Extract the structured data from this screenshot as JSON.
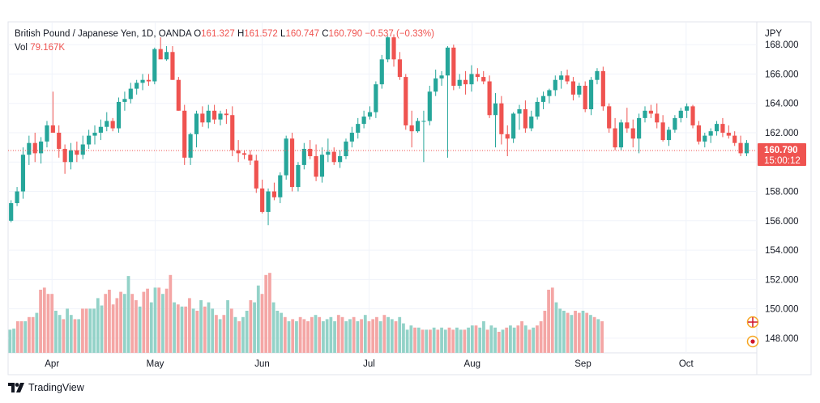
{
  "legend": {
    "symbol": "British Pound / Japanese Yen, 1D, OANDA",
    "open_label": "O",
    "open": "161.327",
    "high_label": "H",
    "high": "161.572",
    "low_label": "L",
    "low": "160.747",
    "close_label": "C",
    "close": "160.790",
    "change": "−0.537 (−0.33%)",
    "vol_label": "Vol",
    "vol": "79.167K"
  },
  "axis": {
    "currency": "JPY",
    "price_ticks": [
      "168.000",
      "166.000",
      "164.000",
      "162.000",
      "160.000",
      "158.000",
      "156.000",
      "154.000",
      "152.000",
      "150.000",
      "148.000"
    ],
    "months": [
      "Apr",
      "May",
      "Jun",
      "Jul",
      "Aug",
      "Sep",
      "Oct"
    ]
  },
  "last_price": {
    "price": "160.790",
    "countdown": "15:00:12"
  },
  "footer": {
    "brand": "TradingView",
    "logo_icon": "tradingview-logo-icon"
  },
  "colors": {
    "up": "#26a69a",
    "down": "#ef5350",
    "vol_up": "#93d2c8",
    "vol_down": "#f4a6a5"
  },
  "chart_data": {
    "type": "candlestick",
    "title": "British Pound / Japanese Yen, 1D, OANDA",
    "ylim": [
      147,
      169.5
    ],
    "y_axis_side": "right",
    "grid": true,
    "x_months": [
      {
        "label": "Apr",
        "index": 11
      },
      {
        "label": "May",
        "index": 38
      },
      {
        "label": "Jun",
        "index": 66
      },
      {
        "label": "Jul",
        "index": 94
      },
      {
        "label": "Aug",
        "index": 121
      },
      {
        "label": "Sep",
        "index": 150
      },
      {
        "label": "Oct",
        "index": 177
      }
    ],
    "candles": [
      [
        156.0,
        157.4,
        155.9,
        157.2
      ],
      [
        157.2,
        158.3,
        157.0,
        158.0
      ],
      [
        158.0,
        161.0,
        157.5,
        160.5
      ],
      [
        160.5,
        161.8,
        159.8,
        161.3
      ],
      [
        161.3,
        162.0,
        160.0,
        160.6
      ],
      [
        160.6,
        161.7,
        159.9,
        161.4
      ],
      [
        161.4,
        162.8,
        161.0,
        162.5
      ],
      [
        162.5,
        164.8,
        162.0,
        162.0
      ],
      [
        162.0,
        162.5,
        160.3,
        160.9
      ],
      [
        160.9,
        161.2,
        159.2,
        160.0
      ],
      [
        160.0,
        161.3,
        159.5,
        160.8
      ],
      [
        160.8,
        161.4,
        160.0,
        160.5
      ],
      [
        160.5,
        161.8,
        160.2,
        161.2
      ],
      [
        161.2,
        162.2,
        160.9,
        161.8
      ],
      [
        161.8,
        162.5,
        161.2,
        162.0
      ],
      [
        162.0,
        162.9,
        161.5,
        162.4
      ],
      [
        162.4,
        163.4,
        162.1,
        162.8
      ],
      [
        162.8,
        163.0,
        162.1,
        162.3
      ],
      [
        162.3,
        164.4,
        162.0,
        164.1
      ],
      [
        164.1,
        164.8,
        163.5,
        164.3
      ],
      [
        164.3,
        165.4,
        164.0,
        165.0
      ],
      [
        165.0,
        165.6,
        164.6,
        165.4
      ],
      [
        165.4,
        166.0,
        164.9,
        165.6
      ],
      [
        165.6,
        166.0,
        165.2,
        165.5
      ],
      [
        165.5,
        167.8,
        165.3,
        167.7
      ],
      [
        167.7,
        168.5,
        167.2,
        167.0
      ],
      [
        167.0,
        167.9,
        166.9,
        167.5
      ],
      [
        167.5,
        167.9,
        165.6,
        165.6
      ],
      [
        165.6,
        165.8,
        163.5,
        163.5
      ],
      [
        163.5,
        163.9,
        159.8,
        160.3
      ],
      [
        160.3,
        162.0,
        159.8,
        161.9
      ],
      [
        161.9,
        163.5,
        161.0,
        163.3
      ],
      [
        163.3,
        163.8,
        162.4,
        162.7
      ],
      [
        162.7,
        163.9,
        162.3,
        163.5
      ],
      [
        163.5,
        163.9,
        162.6,
        162.9
      ],
      [
        162.9,
        163.5,
        162.5,
        163.3
      ],
      [
        163.3,
        163.6,
        162.6,
        163.2
      ],
      [
        163.2,
        163.8,
        160.4,
        160.8
      ],
      [
        160.8,
        161.5,
        160.0,
        160.6
      ],
      [
        160.6,
        160.8,
        160.2,
        160.5
      ],
      [
        160.5,
        160.8,
        159.8,
        160.1
      ],
      [
        160.1,
        160.5,
        157.9,
        158.2
      ],
      [
        158.2,
        158.8,
        156.5,
        156.6
      ],
      [
        156.6,
        158.2,
        155.7,
        158.0
      ],
      [
        158.0,
        158.6,
        157.4,
        157.6
      ],
      [
        157.6,
        159.3,
        157.2,
        159.1
      ],
      [
        159.1,
        161.8,
        158.8,
        161.6
      ],
      [
        161.6,
        162.0,
        158.0,
        158.3
      ],
      [
        158.3,
        160.0,
        158.0,
        159.8
      ],
      [
        159.8,
        161.3,
        159.5,
        160.9
      ],
      [
        160.9,
        161.5,
        160.2,
        160.4
      ],
      [
        160.4,
        161.2,
        158.7,
        159.0
      ],
      [
        159.0,
        161.0,
        158.6,
        160.5
      ],
      [
        160.5,
        161.6,
        160.0,
        160.7
      ],
      [
        160.7,
        161.0,
        159.8,
        160.0
      ],
      [
        160.0,
        160.8,
        159.6,
        160.4
      ],
      [
        160.4,
        161.6,
        160.2,
        161.4
      ],
      [
        161.4,
        162.4,
        161.0,
        162.0
      ],
      [
        162.0,
        163.0,
        161.6,
        162.6
      ],
      [
        162.6,
        163.5,
        162.3,
        163.1
      ],
      [
        163.1,
        163.8,
        162.9,
        163.4
      ],
      [
        163.4,
        165.5,
        163.0,
        165.3
      ],
      [
        165.3,
        167.3,
        165.0,
        167.0
      ],
      [
        167.0,
        168.6,
        166.8,
        168.5
      ],
      [
        168.5,
        168.7,
        166.5,
        167.0
      ],
      [
        167.0,
        167.5,
        165.6,
        165.8
      ],
      [
        165.8,
        166.0,
        162.2,
        162.5
      ],
      [
        162.5,
        163.5,
        161.0,
        162.1
      ],
      [
        162.1,
        163.0,
        162.0,
        162.8
      ],
      [
        162.8,
        163.5,
        160.0,
        162.8
      ],
      [
        162.8,
        165.2,
        162.5,
        164.8
      ],
      [
        164.8,
        166.3,
        164.5,
        165.7
      ],
      [
        165.7,
        166.2,
        165.2,
        165.9
      ],
      [
        165.9,
        167.9,
        160.3,
        167.8
      ],
      [
        167.8,
        168.0,
        164.9,
        165.2
      ],
      [
        165.2,
        166.0,
        165.0,
        165.6
      ],
      [
        165.6,
        166.2,
        164.6,
        165.3
      ],
      [
        165.3,
        166.6,
        164.8,
        166.0
      ],
      [
        166.0,
        166.4,
        165.5,
        165.8
      ],
      [
        165.8,
        166.2,
        165.3,
        165.5
      ],
      [
        165.5,
        165.9,
        163.0,
        163.2
      ],
      [
        163.2,
        164.7,
        161.0,
        164.0
      ],
      [
        164.0,
        164.5,
        161.2,
        161.9
      ],
      [
        161.9,
        162.5,
        160.4,
        161.6
      ],
      [
        161.6,
        163.4,
        161.3,
        163.3
      ],
      [
        163.3,
        163.9,
        162.2,
        163.6
      ],
      [
        163.6,
        164.2,
        162.0,
        162.3
      ],
      [
        162.3,
        163.5,
        162.1,
        163.1
      ],
      [
        163.1,
        164.4,
        162.9,
        164.1
      ],
      [
        164.1,
        164.8,
        163.6,
        164.5
      ],
      [
        164.5,
        165.0,
        164.0,
        164.9
      ],
      [
        164.9,
        165.9,
        164.5,
        165.6
      ],
      [
        165.6,
        166.2,
        165.0,
        165.9
      ],
      [
        165.9,
        166.3,
        165.3,
        165.5
      ],
      [
        165.5,
        165.8,
        164.2,
        164.6
      ],
      [
        164.6,
        165.4,
        164.4,
        165.2
      ],
      [
        165.2,
        165.5,
        163.4,
        163.6
      ],
      [
        163.6,
        165.8,
        163.2,
        165.6
      ],
      [
        165.6,
        166.4,
        165.3,
        166.2
      ],
      [
        166.2,
        166.5,
        163.5,
        163.8
      ],
      [
        163.8,
        164.0,
        162.0,
        162.3
      ],
      [
        162.3,
        163.0,
        160.8,
        161.0
      ],
      [
        161.0,
        162.9,
        160.8,
        162.7
      ],
      [
        162.7,
        163.7,
        162.0,
        162.3
      ],
      [
        162.3,
        162.9,
        161.0,
        161.6
      ],
      [
        161.6,
        163.3,
        160.6,
        163.0
      ],
      [
        163.0,
        163.8,
        162.7,
        163.5
      ],
      [
        163.5,
        163.9,
        163.0,
        163.3
      ],
      [
        163.3,
        164.0,
        162.3,
        162.7
      ],
      [
        162.7,
        163.2,
        161.4,
        161.5
      ],
      [
        161.5,
        162.4,
        161.1,
        162.2
      ],
      [
        162.2,
        163.2,
        162.0,
        163.0
      ],
      [
        163.0,
        163.7,
        162.7,
        163.5
      ],
      [
        163.5,
        164.0,
        163.0,
        163.8
      ],
      [
        163.8,
        163.9,
        162.3,
        162.5
      ],
      [
        162.5,
        162.8,
        161.2,
        161.4
      ],
      [
        161.4,
        162.0,
        161.0,
        161.8
      ],
      [
        161.8,
        162.3,
        161.3,
        162.1
      ],
      [
        162.1,
        162.8,
        161.8,
        162.6
      ],
      [
        162.6,
        163.0,
        161.7,
        162.0
      ],
      [
        162.0,
        162.5,
        161.6,
        161.8
      ],
      [
        161.8,
        162.1,
        161.1,
        161.3
      ],
      [
        161.3,
        161.8,
        160.4,
        160.6
      ],
      [
        160.6,
        161.5,
        160.4,
        161.3
      ]
    ],
    "volume": [
      [
        0.22,
        "up"
      ],
      [
        0.23,
        "up"
      ],
      [
        0.3,
        "down"
      ],
      [
        0.3,
        "down"
      ],
      [
        0.3,
        "up"
      ],
      [
        0.34,
        "down"
      ],
      [
        0.34,
        "down"
      ],
      [
        0.38,
        "up"
      ],
      [
        0.6,
        "down"
      ],
      [
        0.62,
        "down"
      ],
      [
        0.56,
        "down"
      ],
      [
        0.56,
        "down"
      ],
      [
        0.4,
        "up"
      ],
      [
        0.36,
        "up"
      ],
      [
        0.32,
        "down"
      ],
      [
        0.42,
        "up"
      ],
      [
        0.36,
        "up"
      ],
      [
        0.32,
        "down"
      ],
      [
        0.32,
        "up"
      ],
      [
        0.42,
        "down"
      ],
      [
        0.42,
        "down"
      ],
      [
        0.42,
        "up"
      ],
      [
        0.42,
        "up"
      ],
      [
        0.52,
        "up"
      ],
      [
        0.45,
        "up"
      ],
      [
        0.56,
        "down"
      ],
      [
        0.6,
        "down"
      ],
      [
        0.46,
        "down"
      ],
      [
        0.52,
        "down"
      ],
      [
        0.58,
        "down"
      ],
      [
        0.56,
        "up"
      ],
      [
        0.73,
        "up"
      ],
      [
        0.56,
        "down"
      ],
      [
        0.5,
        "down"
      ],
      [
        0.44,
        "up"
      ],
      [
        0.58,
        "down"
      ],
      [
        0.61,
        "down"
      ],
      [
        0.48,
        "up"
      ],
      [
        0.62,
        "up"
      ],
      [
        0.62,
        "down"
      ],
      [
        0.56,
        "up"
      ],
      [
        0.61,
        "down"
      ],
      [
        0.74,
        "down"
      ],
      [
        0.48,
        "up"
      ],
      [
        0.46,
        "down"
      ],
      [
        0.44,
        "up"
      ],
      [
        0.44,
        "down"
      ],
      [
        0.52,
        "down"
      ],
      [
        0.42,
        "up"
      ],
      [
        0.4,
        "down"
      ],
      [
        0.5,
        "up"
      ],
      [
        0.44,
        "down"
      ],
      [
        0.48,
        "up"
      ],
      [
        0.42,
        "up"
      ],
      [
        0.36,
        "down"
      ],
      [
        0.32,
        "up"
      ],
      [
        0.36,
        "down"
      ],
      [
        0.5,
        "up"
      ],
      [
        0.42,
        "down"
      ],
      [
        0.34,
        "up"
      ],
      [
        0.3,
        "down"
      ],
      [
        0.34,
        "up"
      ],
      [
        0.4,
        "up"
      ],
      [
        0.5,
        "down"
      ],
      [
        0.48,
        "up"
      ],
      [
        0.64,
        "up"
      ],
      [
        0.56,
        "down"
      ],
      [
        0.74,
        "down"
      ],
      [
        0.76,
        "down"
      ],
      [
        0.48,
        "up"
      ],
      [
        0.4,
        "up"
      ],
      [
        0.38,
        "up"
      ],
      [
        0.34,
        "down"
      ],
      [
        0.3,
        "up"
      ],
      [
        0.32,
        "down"
      ],
      [
        0.3,
        "up"
      ],
      [
        0.34,
        "down"
      ],
      [
        0.32,
        "down"
      ],
      [
        0.3,
        "down"
      ],
      [
        0.34,
        "down"
      ],
      [
        0.36,
        "up"
      ],
      [
        0.34,
        "down"
      ],
      [
        0.3,
        "up"
      ],
      [
        0.32,
        "up"
      ],
      [
        0.34,
        "up"
      ],
      [
        0.3,
        "up"
      ],
      [
        0.36,
        "down"
      ],
      [
        0.34,
        "down"
      ],
      [
        0.3,
        "up"
      ],
      [
        0.32,
        "up"
      ],
      [
        0.34,
        "down"
      ],
      [
        0.3,
        "up"
      ],
      [
        0.32,
        "down"
      ],
      [
        0.36,
        "up"
      ],
      [
        0.3,
        "down"
      ],
      [
        0.32,
        "down"
      ],
      [
        0.34,
        "down"
      ],
      [
        0.3,
        "up"
      ],
      [
        0.36,
        "down"
      ],
      [
        0.34,
        "up"
      ],
      [
        0.32,
        "up"
      ],
      [
        0.3,
        "down"
      ],
      [
        0.34,
        "up"
      ],
      [
        0.28,
        "up"
      ],
      [
        0.22,
        "up"
      ],
      [
        0.26,
        "up"
      ],
      [
        0.24,
        "down"
      ],
      [
        0.24,
        "up"
      ],
      [
        0.22,
        "down"
      ],
      [
        0.22,
        "up"
      ],
      [
        0.22,
        "down"
      ],
      [
        0.24,
        "up"
      ],
      [
        0.22,
        "down"
      ],
      [
        0.24,
        "up"
      ],
      [
        0.22,
        "up"
      ],
      [
        0.24,
        "down"
      ],
      [
        0.22,
        "down"
      ],
      [
        0.24,
        "up"
      ],
      [
        0.22,
        "up"
      ],
      [
        0.22,
        "down"
      ],
      [
        0.24,
        "up"
      ],
      [
        0.26,
        "up"
      ],
      [
        0.26,
        "down"
      ],
      [
        0.24,
        "up"
      ],
      [
        0.3,
        "up"
      ],
      [
        0.22,
        "down"
      ],
      [
        0.26,
        "up"
      ],
      [
        0.24,
        "up"
      ],
      [
        0.2,
        "down"
      ],
      [
        0.22,
        "up"
      ],
      [
        0.24,
        "down"
      ],
      [
        0.26,
        "up"
      ],
      [
        0.24,
        "up"
      ],
      [
        0.26,
        "down"
      ],
      [
        0.3,
        "down"
      ],
      [
        0.26,
        "up"
      ],
      [
        0.22,
        "down"
      ],
      [
        0.24,
        "up"
      ],
      [
        0.26,
        "down"
      ],
      [
        0.3,
        "down"
      ],
      [
        0.4,
        "down"
      ],
      [
        0.6,
        "down"
      ],
      [
        0.62,
        "down"
      ],
      [
        0.48,
        "up"
      ],
      [
        0.42,
        "up"
      ],
      [
        0.4,
        "up"
      ],
      [
        0.38,
        "down"
      ],
      [
        0.36,
        "up"
      ],
      [
        0.4,
        "down"
      ],
      [
        0.38,
        "down"
      ],
      [
        0.4,
        "up"
      ],
      [
        0.38,
        "down"
      ],
      [
        0.36,
        "up"
      ],
      [
        0.34,
        "down"
      ],
      [
        0.32,
        "up"
      ],
      [
        0.3,
        "down"
      ]
    ]
  }
}
